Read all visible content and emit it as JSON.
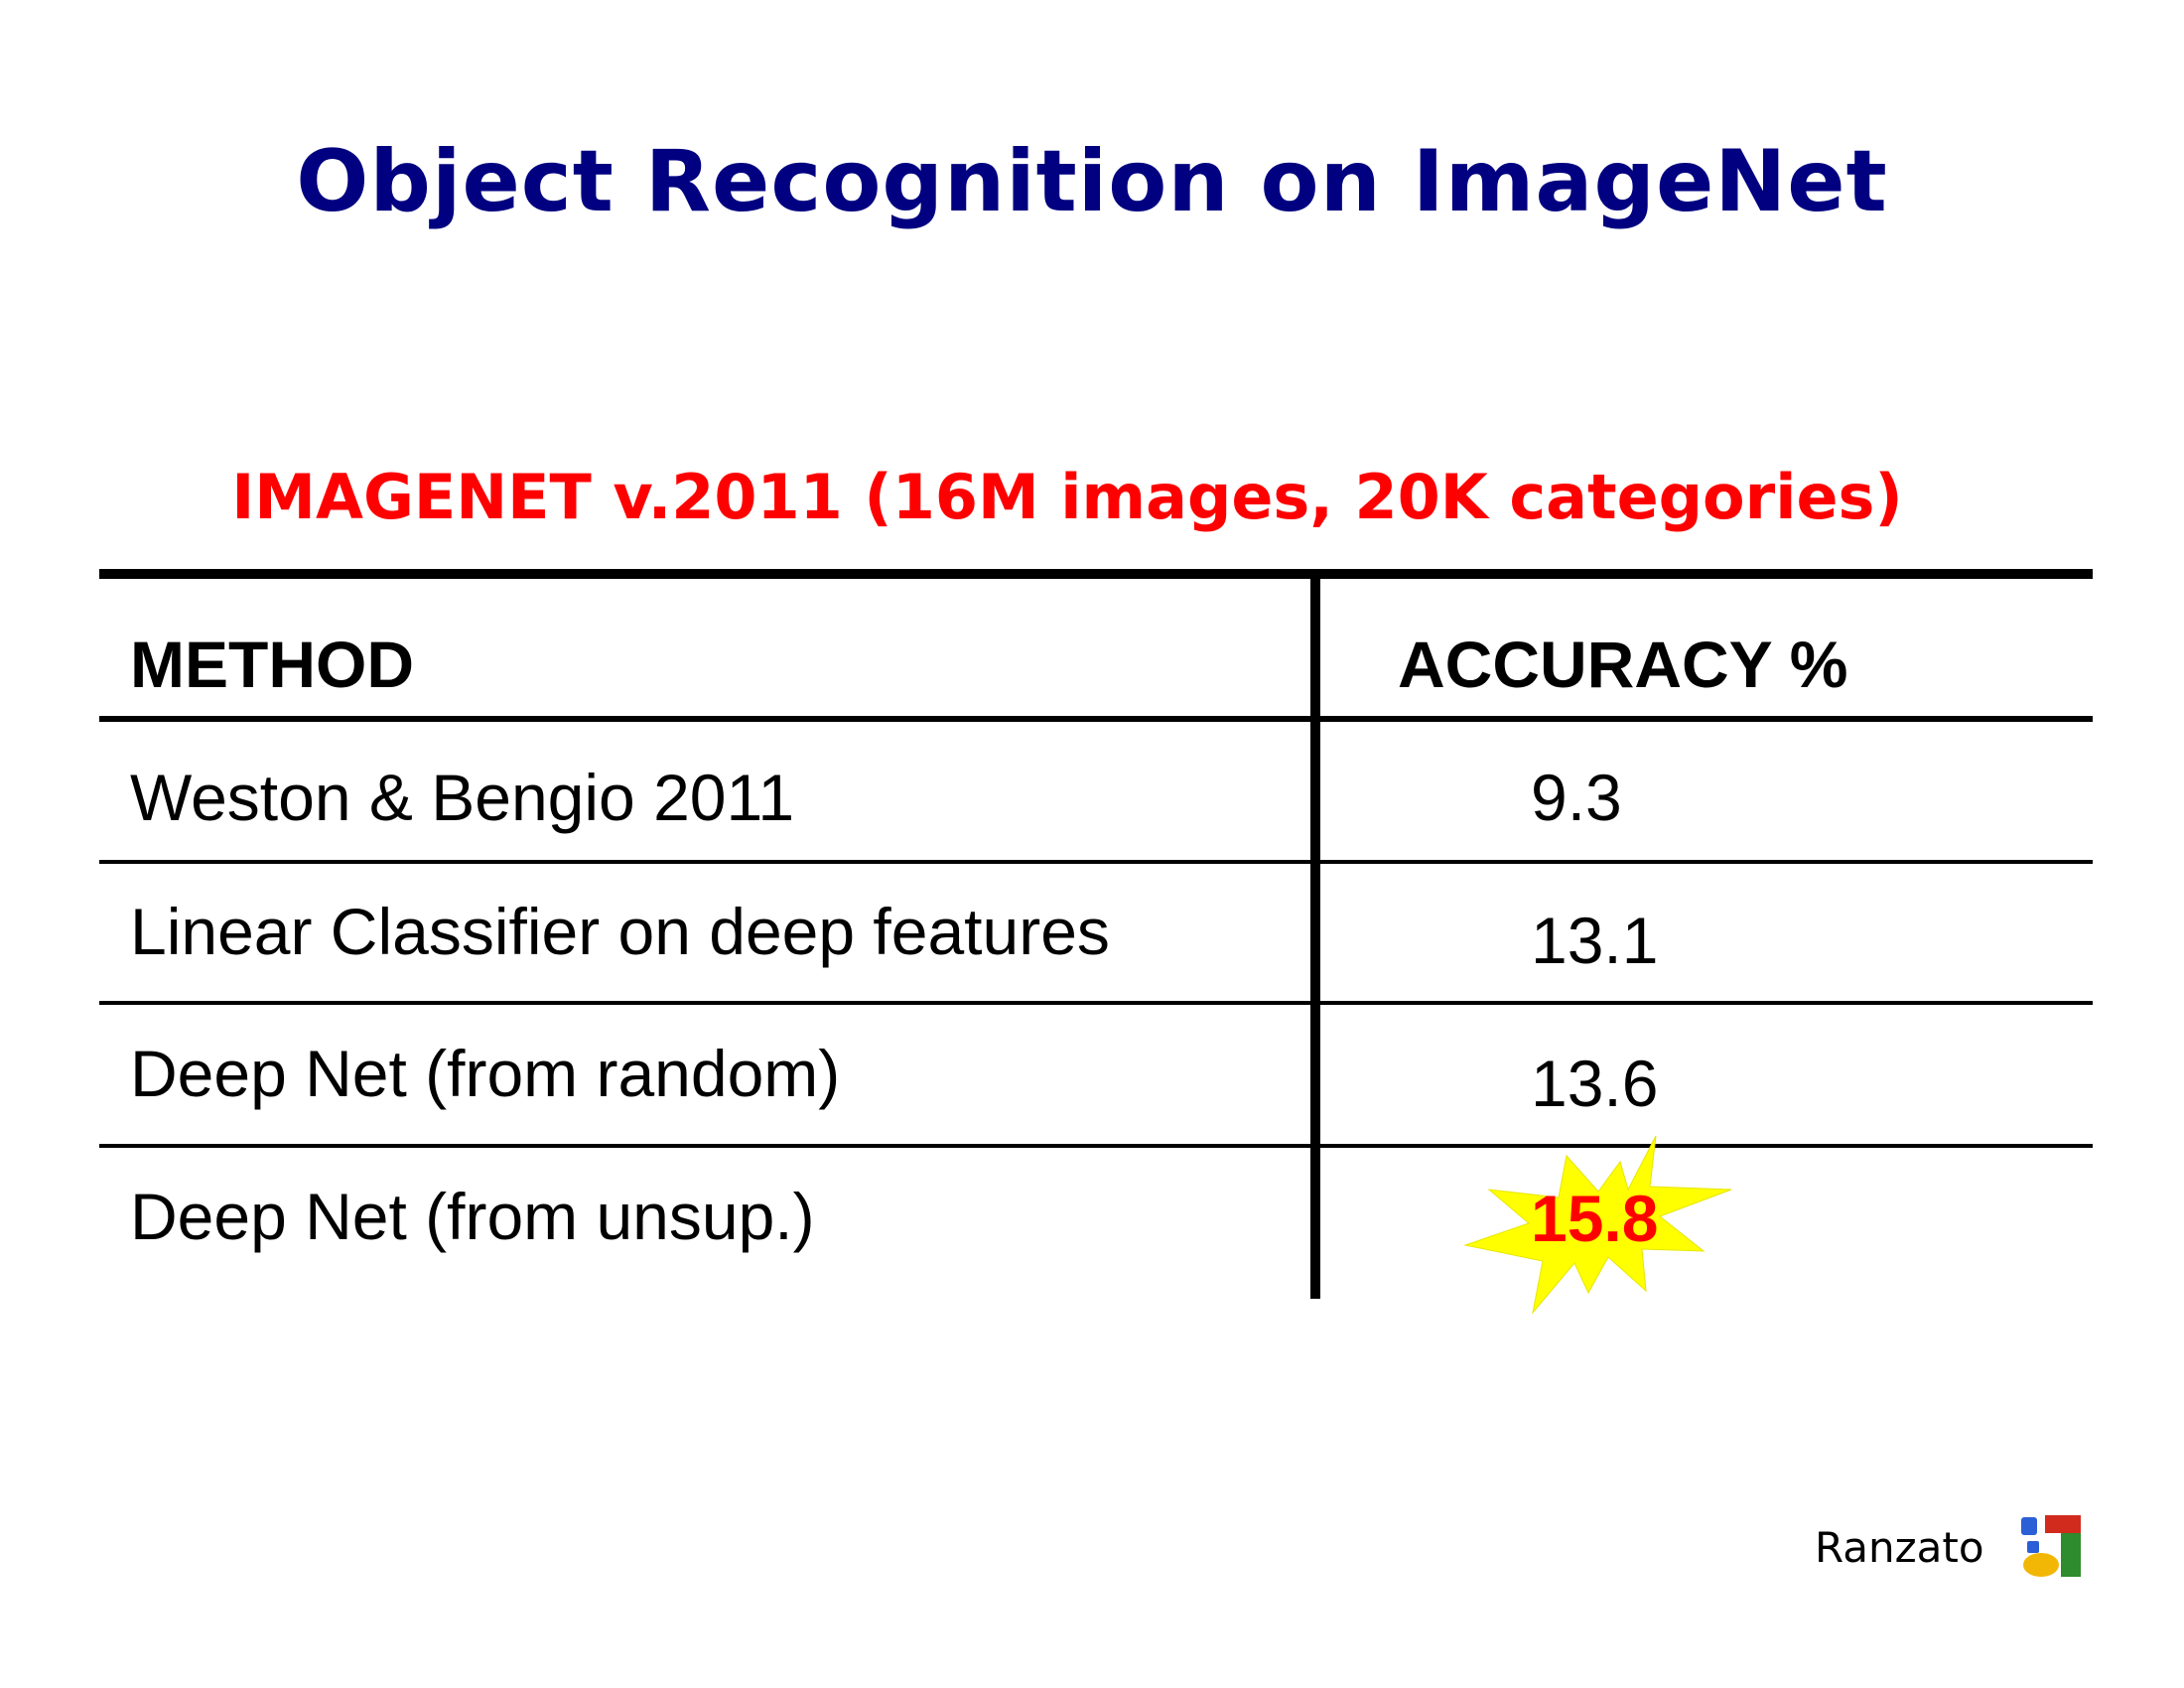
{
  "slide": {
    "title": "Object Recognition on ImageNet",
    "subtitle": "IMAGENET v.2011 (16M images, 20K categories)",
    "author": "Ranzato"
  },
  "table": {
    "headers": [
      "METHOD",
      "ACCURACY %"
    ],
    "rows": [
      {
        "method": "Weston & Bengio 2011",
        "accuracy": "9.3"
      },
      {
        "method": "Linear Classifier on deep features",
        "accuracy": "13.1"
      },
      {
        "method": "Deep Net (from random)",
        "accuracy": "13.6"
      },
      {
        "method": "Deep Net (from unsup.)",
        "accuracy": "15.8"
      }
    ],
    "highlight_row": 3
  },
  "colors": {
    "title": "#000080",
    "subtitle": "#ff0000",
    "highlight_text": "#ff0000",
    "highlight_burst": "#ffff00"
  },
  "logo": {
    "icon": "google-logo-icon"
  }
}
